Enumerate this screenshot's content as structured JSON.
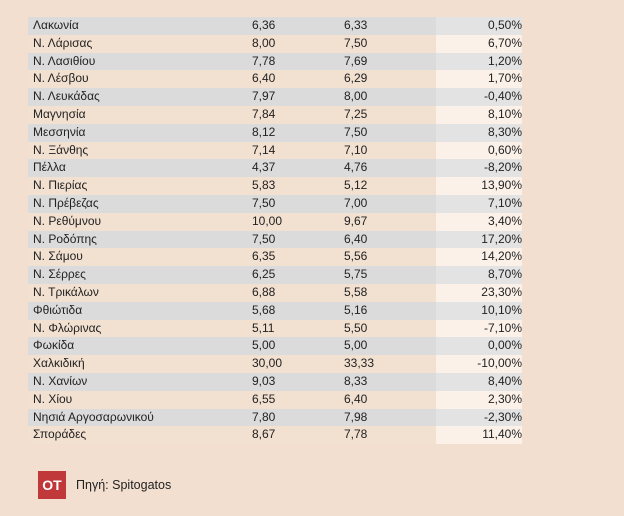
{
  "table": {
    "rows": [
      {
        "name": "Λακωνία",
        "v1": "6,36",
        "v2": "6,33",
        "pct": "0,50%"
      },
      {
        "name": "Ν. Λάρισας",
        "v1": "8,00",
        "v2": "7,50",
        "pct": "6,70%"
      },
      {
        "name": "Ν. Λασιθίου",
        "v1": "7,78",
        "v2": "7,69",
        "pct": "1,20%"
      },
      {
        "name": "Ν. Λέσβου",
        "v1": "6,40",
        "v2": "6,29",
        "pct": "1,70%"
      },
      {
        "name": "Ν. Λευκάδας",
        "v1": "7,97",
        "v2": "8,00",
        "pct": "-0,40%"
      },
      {
        "name": "Μαγνησία",
        "v1": "7,84",
        "v2": "7,25",
        "pct": "8,10%"
      },
      {
        "name": "Μεσσηνία",
        "v1": "8,12",
        "v2": "7,50",
        "pct": "8,30%"
      },
      {
        "name": "Ν. Ξάνθης",
        "v1": "7,14",
        "v2": "7,10",
        "pct": "0,60%"
      },
      {
        "name": "Πέλλα",
        "v1": "4,37",
        "v2": "4,76",
        "pct": "-8,20%"
      },
      {
        "name": "Ν. Πιερίας",
        "v1": "5,83",
        "v2": "5,12",
        "pct": "13,90%"
      },
      {
        "name": "Ν. Πρέβεζας",
        "v1": "7,50",
        "v2": "7,00",
        "pct": "7,10%"
      },
      {
        "name": "Ν. Ρεθύμνου",
        "v1": "10,00",
        "v2": "9,67",
        "pct": "3,40%"
      },
      {
        "name": "Ν. Ροδόπης",
        "v1": "7,50",
        "v2": "6,40",
        "pct": "17,20%"
      },
      {
        "name": "Ν. Σάμου",
        "v1": "6,35",
        "v2": "5,56",
        "pct": "14,20%"
      },
      {
        "name": "Ν. Σέρρες",
        "v1": "6,25",
        "v2": "5,75",
        "pct": "8,70%"
      },
      {
        "name": "Ν. Τρικάλων",
        "v1": "6,88",
        "v2": "5,58",
        "pct": "23,30%"
      },
      {
        "name": "Φθιώτιδα",
        "v1": "5,68",
        "v2": "5,16",
        "pct": "10,10%"
      },
      {
        "name": "Ν. Φλώρινας",
        "v1": "5,11",
        "v2": "5,50",
        "pct": "-7,10%"
      },
      {
        "name": "Φωκίδα",
        "v1": "5,00",
        "v2": "5,00",
        "pct": "0,00%"
      },
      {
        "name": "Χαλκιδική",
        "v1": "30,00",
        "v2": "33,33",
        "pct": "-10,00%"
      },
      {
        "name": "Ν. Χανίων",
        "v1": "9,03",
        "v2": "8,33",
        "pct": "8,40%"
      },
      {
        "name": "Ν. Χίου",
        "v1": "6,55",
        "v2": "6,40",
        "pct": "2,30%"
      },
      {
        "name": "Νησιά Αργοσαρωνικού",
        "v1": "7,80",
        "v2": "7,98",
        "pct": "-2,30%"
      },
      {
        "name": "Σποράδες",
        "v1": "8,67",
        "v2": "7,78",
        "pct": "11,40%"
      }
    ]
  },
  "footer": {
    "logo_text": "ΟΤ",
    "source_text": "Πηγή: Spitogatos"
  },
  "colors": {
    "background": "#f2dfd0",
    "row_stripe": "#dbdbdb",
    "logo_red": "#c0383a"
  }
}
